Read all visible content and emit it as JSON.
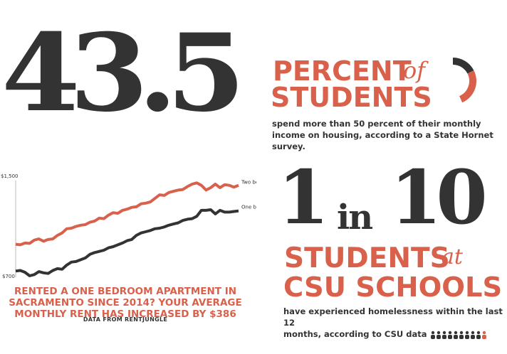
{
  "top_stat": {
    "number": "43.5",
    "headline_1": "PERCENT",
    "of": "of",
    "headline_2": "STUDENTS",
    "description": "spend more than 50 percent of their monthly income on housing, according to a State Hornet survey.",
    "donut_value_percent": 43.5
  },
  "chart_data": {
    "type": "line",
    "ylim": [
      700,
      1500
    ],
    "y_tick_labels": [
      "$1,500",
      "$700"
    ],
    "series": [
      {
        "name": "Two bedroom",
        "color": "#d9604a",
        "values": [
          965,
          960,
          975,
          972,
          1000,
          1010,
          990,
          1005,
          1010,
          1040,
          1060,
          1095,
          1100,
          1115,
          1125,
          1130,
          1150,
          1160,
          1185,
          1180,
          1210,
          1230,
          1225,
          1250,
          1260,
          1275,
          1280,
          1305,
          1310,
          1320,
          1350,
          1380,
          1375,
          1400,
          1410,
          1420,
          1425,
          1450,
          1470,
          1480,
          1460,
          1420,
          1440,
          1470,
          1440,
          1465,
          1460,
          1445,
          1460
        ]
      },
      {
        "name": "One bedroom",
        "color": "#333333",
        "values": [
          740,
          745,
          730,
          700,
          710,
          735,
          725,
          720,
          745,
          760,
          755,
          790,
          815,
          820,
          835,
          850,
          880,
          895,
          905,
          915,
          935,
          945,
          960,
          975,
          995,
          1005,
          1040,
          1060,
          1070,
          1080,
          1095,
          1100,
          1110,
          1125,
          1135,
          1145,
          1165,
          1175,
          1180,
          1200,
          1250,
          1250,
          1255,
          1220,
          1250,
          1235,
          1235,
          1240,
          1245
        ]
      }
    ]
  },
  "chart_caption": {
    "line_1": "RENTED A ONE BEDROOM APARTMENT IN",
    "line_2": "SACRAMENTO SINCE 2014? YOUR AVERAGE",
    "line_3": "MONTHLY RENT HAS INCREASED BY $386",
    "source": "DATA FROM RENTJUNGLE"
  },
  "bottom_stat": {
    "one": "1",
    "in": "in",
    "ten": "10",
    "headline_1": "STUDENTS",
    "at": "at",
    "headline_2": "CSU SCHOOLS",
    "description_1": "have experienced homelessness within the last 12",
    "description_2": "months, according to CSU data",
    "people_total": 10,
    "people_highlighted": 1
  },
  "colors": {
    "accent": "#d9604a",
    "dark": "#333333"
  }
}
